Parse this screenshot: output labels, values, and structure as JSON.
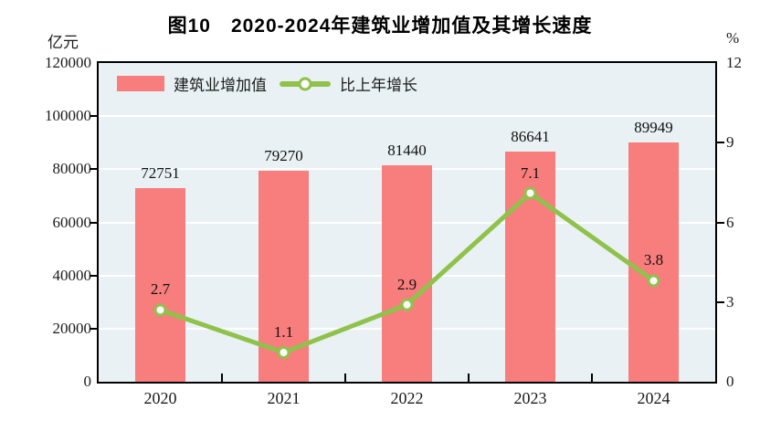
{
  "title": "图10　2020-2024年建筑业增加值及其增长速度",
  "left_axis": {
    "unit": "亿元"
  },
  "right_axis": {
    "unit": "%"
  },
  "legend": [
    {
      "label": "建筑业增加值",
      "type": "bar"
    },
    {
      "label": "比上年增长",
      "type": "line"
    }
  ],
  "colors": {
    "bar": "#f87d7d",
    "line": "#8fc24b",
    "marker_fill": "#ffffff",
    "plot_background": "#e9f1f4",
    "gridline": "#ffffff",
    "axis": "#000000",
    "text": "#1a1a1a"
  },
  "chart_data": {
    "type": "bar",
    "title": "图10　2020-2024年建筑业增加值及其增长速度",
    "categories": [
      "2020",
      "2021",
      "2022",
      "2023",
      "2024"
    ],
    "series": [
      {
        "name": "建筑业增加值",
        "type": "bar",
        "axis": "left",
        "unit": "亿元",
        "values": [
          72751,
          79270,
          81440,
          86641,
          89949
        ]
      },
      {
        "name": "比上年增长",
        "type": "line",
        "axis": "right",
        "unit": "%",
        "values": [
          2.7,
          1.1,
          2.9,
          7.1,
          3.8
        ]
      }
    ],
    "point_labels": {
      "bar": [
        "72751",
        "79270",
        "81440",
        "86641",
        "89949"
      ],
      "line": [
        "2.7",
        "1.1",
        "2.9",
        "7.1",
        "3.8"
      ]
    },
    "left_ylim": [
      0,
      120000
    ],
    "left_tick_step": 20000,
    "left_tick_labels": [
      "0",
      "20000",
      "40000",
      "60000",
      "80000",
      "100000",
      "120000"
    ],
    "right_ylim": [
      0,
      12
    ],
    "right_tick_step": 3,
    "right_tick_labels": [
      "0",
      "3",
      "6",
      "9",
      "12"
    ],
    "grid": "horizontal-white",
    "legend_position": "top-left-inside"
  }
}
